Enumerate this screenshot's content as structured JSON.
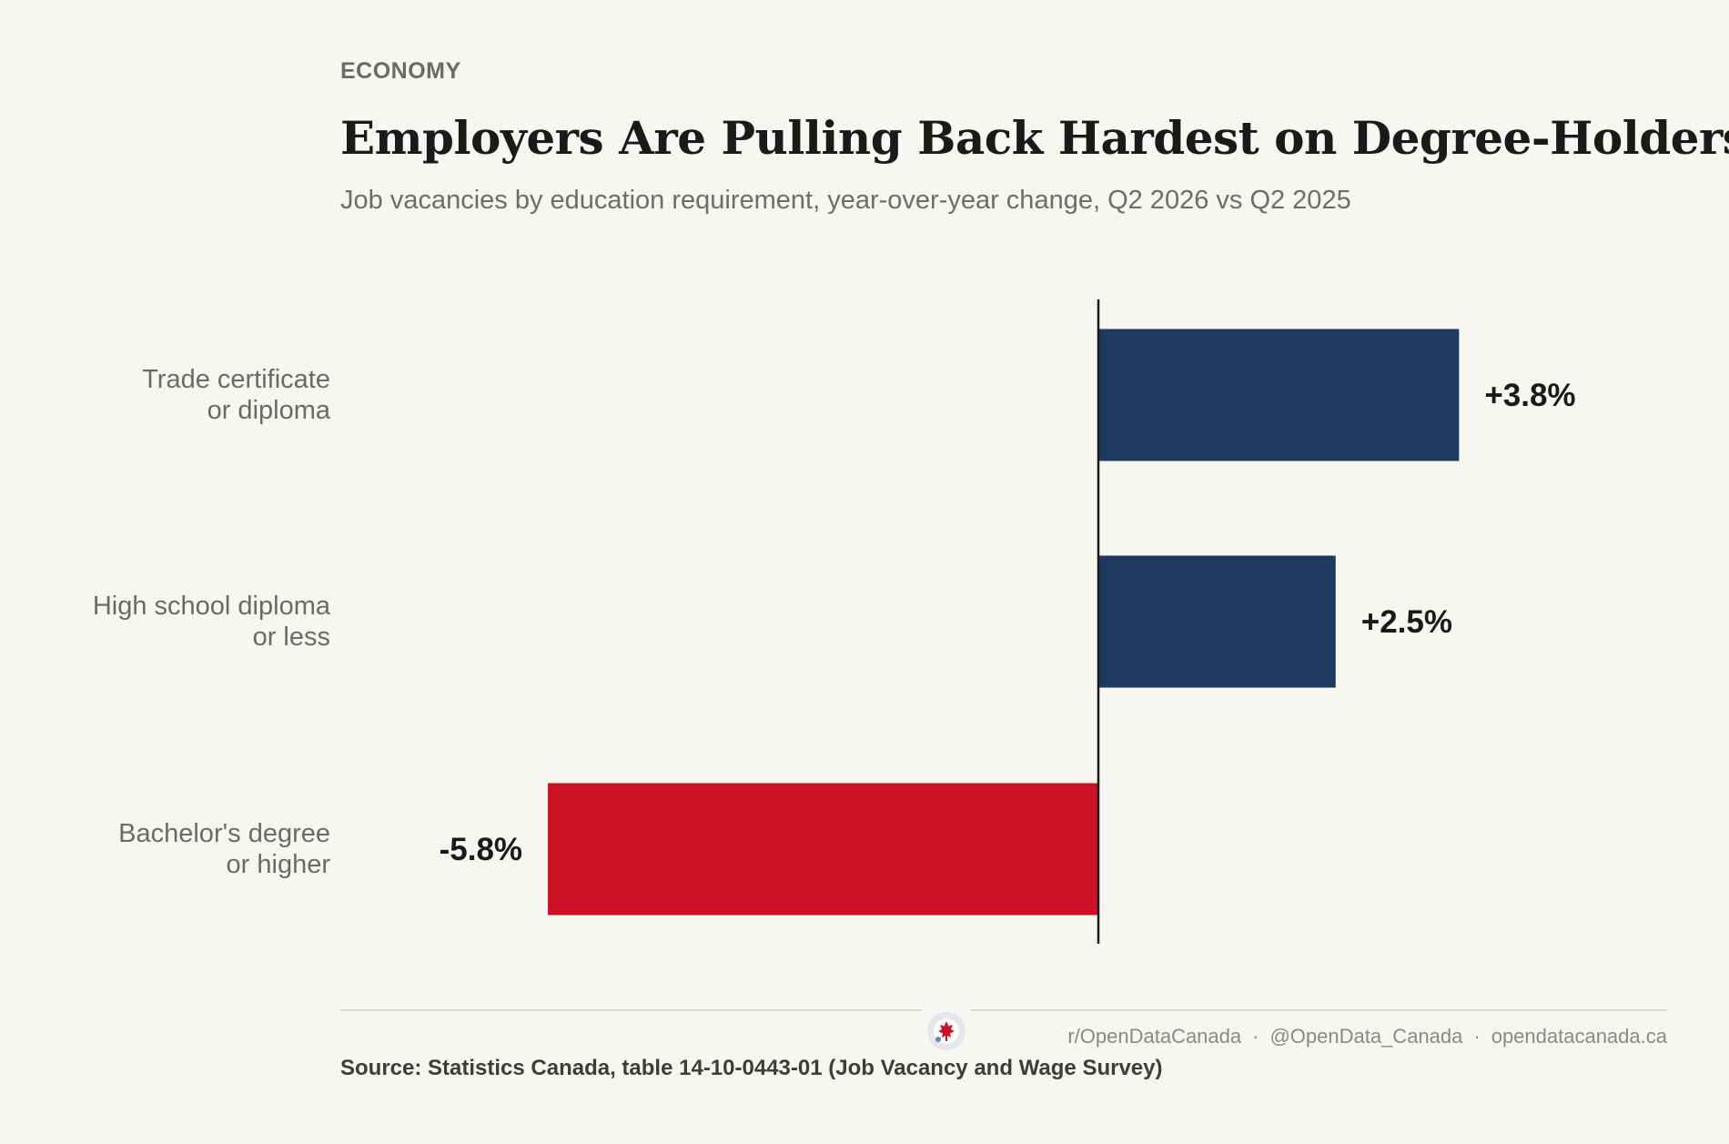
{
  "header": {
    "kicker": "ECONOMY",
    "title": "Employers Are Pulling Back Hardest on Degree-Holders",
    "subtitle": "Job vacancies by education requirement, year-over-year change, Q2 2026 vs Q2 2025"
  },
  "chart_data": {
    "type": "bar",
    "orientation": "horizontal",
    "categories": [
      [
        "Trade certificate",
        "or diploma"
      ],
      [
        "High school diploma",
        "or less"
      ],
      [
        "Bachelor's degree",
        "or higher"
      ]
    ],
    "values": [
      3.8,
      2.5,
      -5.8
    ],
    "value_labels": [
      "+3.8%",
      "+2.5%",
      "-5.8%"
    ],
    "unit": "%",
    "xlim": [
      -5.8,
      3.8
    ],
    "grid": false,
    "legend": "none",
    "colors": {
      "positive": "#1f3a5f",
      "negative": "#cc1126",
      "axis": "#1a1a1a"
    }
  },
  "footer": {
    "credits": [
      "r/OpenDataCanada",
      "@OpenData_Canada",
      "opendatacanada.ca"
    ],
    "separator": "·",
    "source": "Source: Statistics Canada, table 14-10-0443-01 (Job Vacancy and Wage Survey)",
    "logo_icon": "maple-leaf-logo-icon"
  }
}
